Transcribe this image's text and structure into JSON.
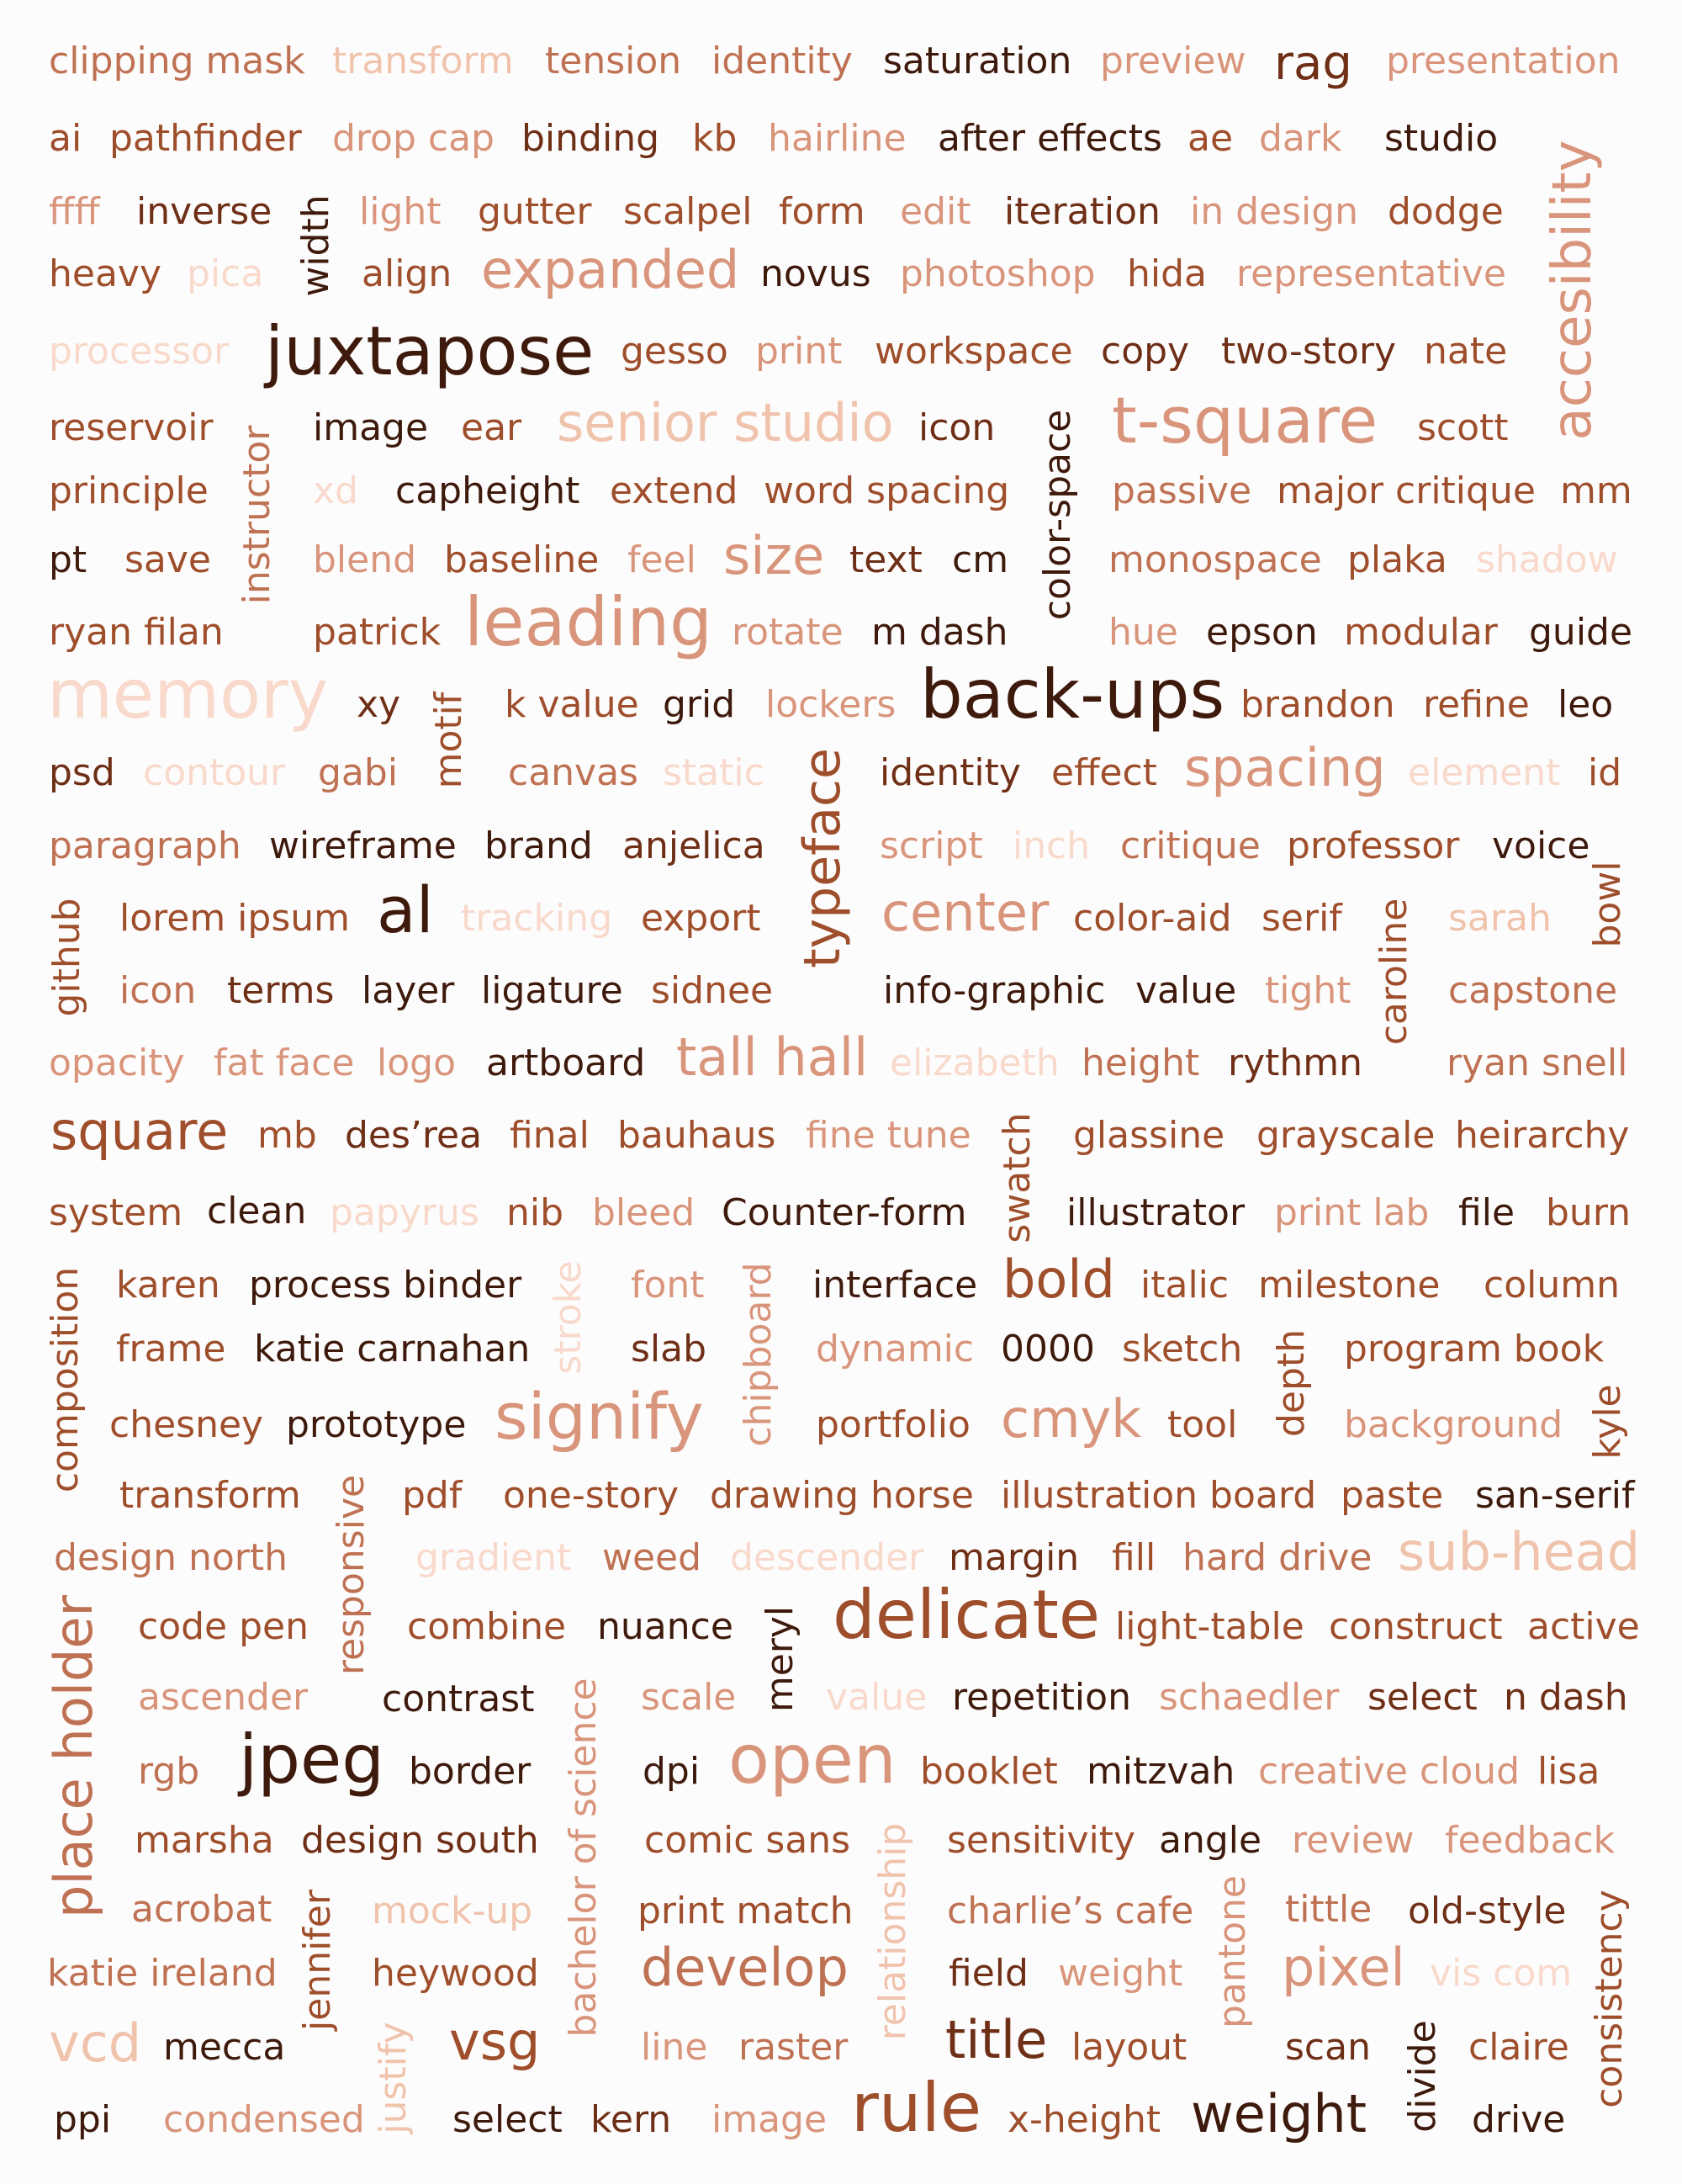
{
  "word_cloud": {
    "words": [
      "clipping mask",
      "transform",
      "tension",
      "identity",
      "saturation",
      "preview",
      "rag",
      "presentation",
      "ai",
      "pathfinder",
      "drop cap",
      "binding",
      "kb",
      "hairline",
      "after effects",
      "ae",
      "dark",
      "studio",
      "ffff",
      "inverse",
      "width",
      "light",
      "gutter",
      "scalpel",
      "form",
      "edit",
      "iteration",
      "in design",
      "dodge",
      "heavy",
      "pica",
      "align",
      "expanded",
      "novus",
      "photoshop",
      "hida",
      "representative",
      "accesibility",
      "processor",
      "juxtapose",
      "gesso",
      "print",
      "workspace",
      "copy",
      "two-story",
      "nate",
      "reservoir",
      "instructor",
      "image",
      "ear",
      "senior studio",
      "icon",
      "color-space",
      "t-square",
      "scott",
      "principle",
      "xd",
      "capheight",
      "extend",
      "word spacing",
      "passive",
      "major critique",
      "mm",
      "pt",
      "save",
      "blend",
      "baseline",
      "feel",
      "size",
      "text",
      "cm",
      "monospace",
      "plaka",
      "shadow",
      "ryan filan",
      "patrick",
      "leading",
      "rotate",
      "m dash",
      "hue",
      "epson",
      "modular",
      "guide",
      "memory",
      "xy",
      "motif",
      "k value",
      "grid",
      "lockers",
      "back-ups",
      "brandon",
      "refine",
      "leo",
      "psd",
      "contour",
      "gabi",
      "canvas",
      "static",
      "typeface",
      "identity",
      "effect",
      "spacing",
      "element",
      "id",
      "paragraph",
      "wireframe",
      "brand",
      "anjelica",
      "script",
      "inch",
      "critique",
      "professor",
      "voice",
      "bowl",
      "github",
      "lorem ipsum",
      "al",
      "tracking",
      "export",
      "center",
      "color-aid",
      "serif",
      "caroline",
      "sarah",
      "icon",
      "terms",
      "layer",
      "ligature",
      "sidnee",
      "info-graphic",
      "value",
      "tight",
      "capstone",
      "opacity",
      "fat face",
      "logo",
      "artboard",
      "tall hall",
      "elizabeth",
      "height",
      "rythmn",
      "ryan snell",
      "square",
      "mb",
      "des’rea",
      "final",
      "bauhaus",
      "fine tune",
      "swatch",
      "glassine",
      "grayscale",
      "heirarchy",
      "system",
      "clean",
      "papyrus",
      "nib",
      "bleed",
      "Counter-form",
      "illustrator",
      "print lab",
      "file",
      "burn",
      "composition",
      "karen",
      "process binder",
      "stroke",
      "font",
      "chipboard",
      "interface",
      "bold",
      "italic",
      "milestone",
      "column",
      "frame",
      "katie carnahan",
      "slab",
      "dynamic",
      "0000",
      "sketch",
      "depth",
      "program book",
      "chesney",
      "prototype",
      "signify",
      "portfolio",
      "cmyk",
      "tool",
      "background",
      "kyle",
      "transform",
      "responsive",
      "pdf",
      "one-story",
      "drawing horse",
      "illustration board",
      "paste",
      "san-serif",
      "design north",
      "gradient",
      "weed",
      "descender",
      "margin",
      "fill",
      "hard drive",
      "sub-head",
      "place holder",
      "code pen",
      "combine",
      "nuance",
      "meryl",
      "delicate",
      "light-table",
      "construct",
      "active",
      "ascender",
      "contrast",
      "bachelor of science",
      "scale",
      "value",
      "repetition",
      "schaedler",
      "select",
      "n dash",
      "rgb",
      "jpeg",
      "border",
      "dpi",
      "open",
      "booklet",
      "mitzvah",
      "creative cloud",
      "lisa",
      "marsha",
      "design south",
      "comic sans",
      "relationship",
      "sensitivity",
      "angle",
      "review",
      "feedback",
      "acrobat",
      "jennifer",
      "mock-up",
      "print match",
      "charlie’s cafe",
      "pantone",
      "tittle",
      "old-style",
      "consistency",
      "katie ireland",
      "heywood",
      "develop",
      "field",
      "weight",
      "pixel",
      "vis com",
      "vcd",
      "mecca",
      "justify",
      "vsg",
      "line",
      "raster",
      "title",
      "layout",
      "scan",
      "divide",
      "claire",
      "ppi",
      "condensed",
      "select",
      "kern",
      "image",
      "rule",
      "x-height",
      "weight",
      "drive"
    ]
  }
}
